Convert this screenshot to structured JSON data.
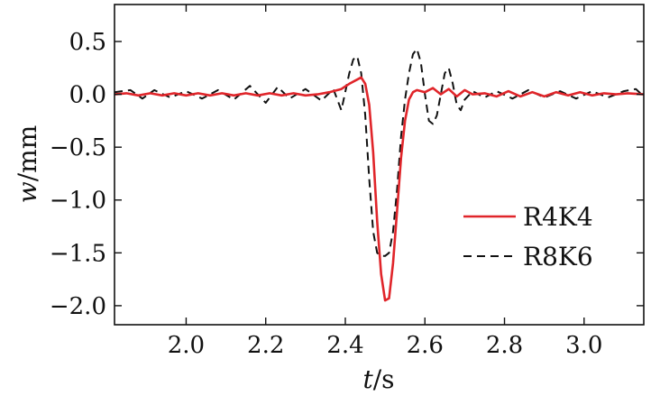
{
  "chart_data": {
    "type": "line",
    "xlabel_var": "t",
    "xlabel_unit": "/s",
    "ylabel_var": "w",
    "ylabel_unit": "/mm",
    "xlim": [
      1.82,
      3.15
    ],
    "ylim": [
      -2.18,
      0.85
    ],
    "xticks": [
      2.0,
      2.2,
      2.4,
      2.6,
      2.8,
      3.0
    ],
    "xtick_labels": [
      "2.0",
      "2.2",
      "2.4",
      "2.6",
      "2.8",
      "3.0"
    ],
    "yticks": [
      0.5,
      0.0,
      -0.5,
      -1.0,
      -1.5,
      -2.0
    ],
    "ytick_labels": [
      "0.5",
      "0.0",
      "−0.5",
      "−1.0",
      "−1.5",
      "−2.0"
    ],
    "grid": false,
    "legend_position": "lower-right",
    "series": [
      {
        "name": "R4K4",
        "color": "#e0252a",
        "style": "solid",
        "x": [
          1.82,
          1.85,
          1.88,
          1.91,
          1.94,
          1.97,
          2.0,
          2.03,
          2.06,
          2.09,
          2.12,
          2.15,
          2.18,
          2.21,
          2.24,
          2.27,
          2.3,
          2.33,
          2.36,
          2.39,
          2.41,
          2.43,
          2.44,
          2.45,
          2.46,
          2.47,
          2.48,
          2.49,
          2.5,
          2.51,
          2.52,
          2.53,
          2.54,
          2.55,
          2.56,
          2.57,
          2.58,
          2.6,
          2.62,
          2.64,
          2.66,
          2.68,
          2.7,
          2.72,
          2.75,
          2.78,
          2.81,
          2.84,
          2.87,
          2.9,
          2.93,
          2.96,
          2.99,
          3.02,
          3.05,
          3.08,
          3.11,
          3.15
        ],
        "y": [
          0.0,
          0.01,
          -0.01,
          0.01,
          -0.01,
          0.01,
          -0.01,
          0.01,
          -0.01,
          0.01,
          -0.01,
          0.01,
          -0.01,
          0.01,
          -0.01,
          0.01,
          -0.01,
          0.0,
          0.02,
          0.05,
          0.1,
          0.14,
          0.16,
          0.1,
          -0.1,
          -0.55,
          -1.2,
          -1.7,
          -1.95,
          -1.93,
          -1.6,
          -1.1,
          -0.6,
          -0.25,
          -0.05,
          0.02,
          0.04,
          0.02,
          0.06,
          0.0,
          0.05,
          -0.02,
          0.04,
          0.0,
          0.01,
          -0.02,
          0.03,
          -0.02,
          0.02,
          -0.02,
          0.02,
          -0.01,
          0.02,
          -0.01,
          0.01,
          0.0,
          0.01,
          0.0
        ]
      },
      {
        "name": "R8K6",
        "color": "#111111",
        "style": "dashed",
        "x": [
          1.82,
          1.86,
          1.89,
          1.92,
          1.96,
          2.0,
          2.04,
          2.08,
          2.12,
          2.16,
          2.2,
          2.23,
          2.26,
          2.3,
          2.34,
          2.37,
          2.39,
          2.41,
          2.42,
          2.43,
          2.44,
          2.45,
          2.46,
          2.47,
          2.48,
          2.49,
          2.5,
          2.51,
          2.52,
          2.53,
          2.54,
          2.55,
          2.56,
          2.57,
          2.58,
          2.59,
          2.6,
          2.61,
          2.62,
          2.63,
          2.64,
          2.65,
          2.66,
          2.67,
          2.68,
          2.69,
          2.7,
          2.72,
          2.75,
          2.78,
          2.82,
          2.86,
          2.9,
          2.94,
          2.98,
          3.02,
          3.06,
          3.1,
          3.13,
          3.15
        ],
        "y": [
          0.02,
          0.04,
          -0.04,
          0.04,
          -0.03,
          0.03,
          -0.04,
          0.04,
          -0.05,
          0.08,
          -0.08,
          0.07,
          -0.04,
          0.05,
          -0.06,
          0.05,
          -0.15,
          0.2,
          0.33,
          0.36,
          0.2,
          -0.2,
          -0.8,
          -1.3,
          -1.5,
          -1.53,
          -1.53,
          -1.5,
          -1.3,
          -0.9,
          -0.4,
          -0.05,
          0.2,
          0.38,
          0.43,
          0.3,
          0.0,
          -0.25,
          -0.28,
          -0.2,
          0.0,
          0.2,
          0.25,
          0.1,
          -0.1,
          -0.15,
          -0.05,
          0.03,
          -0.03,
          0.03,
          -0.04,
          0.04,
          -0.03,
          0.03,
          -0.04,
          0.03,
          -0.03,
          0.03,
          0.05,
          -0.02
        ]
      }
    ]
  }
}
